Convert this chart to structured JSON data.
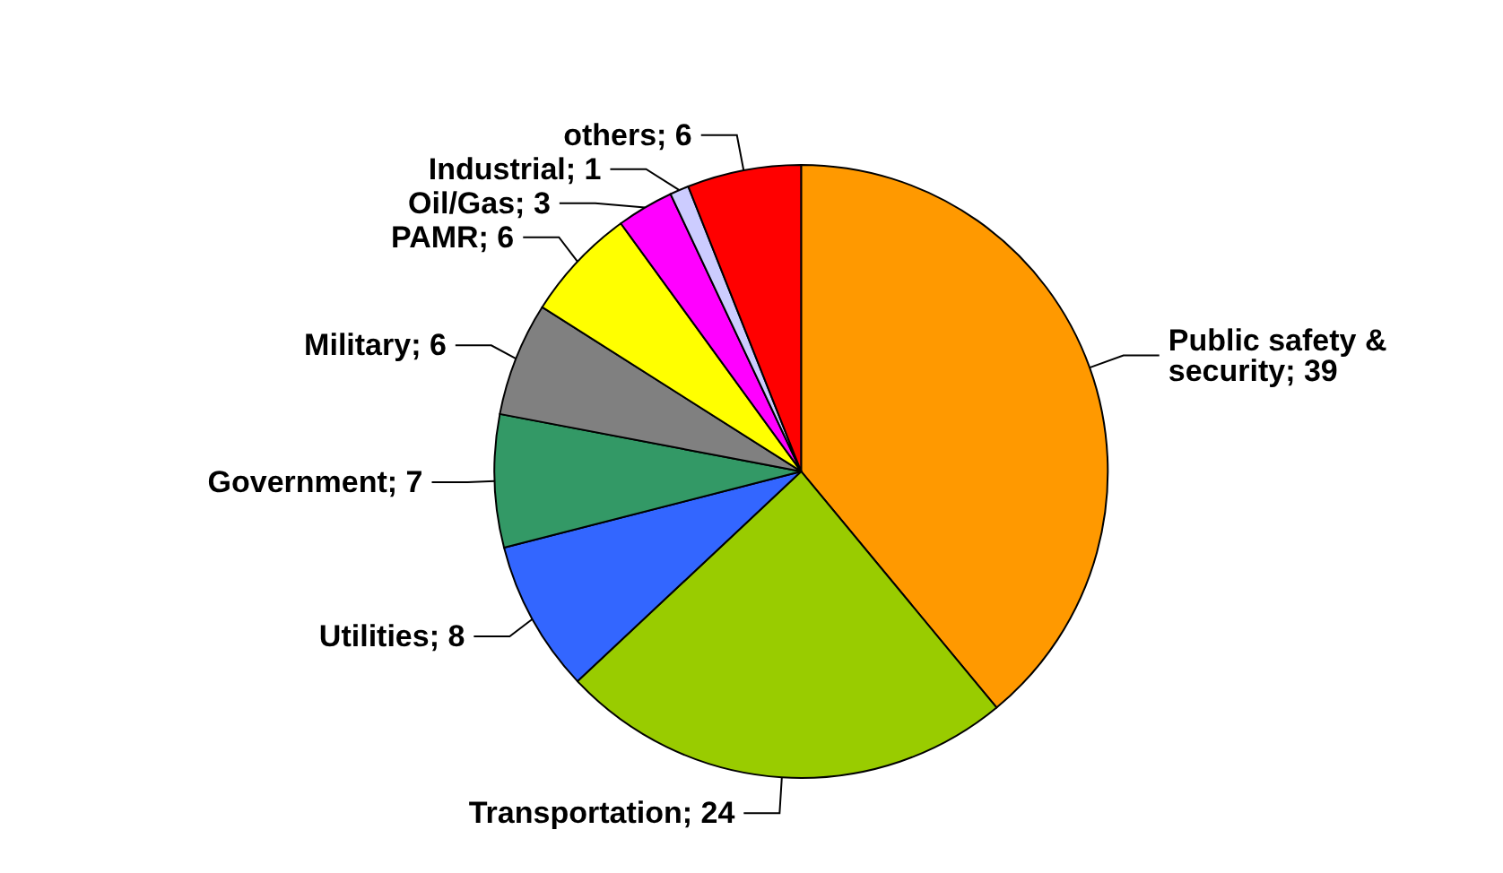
{
  "chart_data": {
    "type": "pie",
    "categories": [
      "Public safety & security",
      "Transportation",
      "Utilities",
      "Government",
      "Military",
      "PAMR",
      "Oil/Gas",
      "Industrial",
      "others"
    ],
    "values": [
      39,
      24,
      8,
      7,
      6,
      6,
      3,
      1,
      6
    ],
    "colors": [
      "#ff9900",
      "#99cc00",
      "#3366ff",
      "#339966",
      "#808080",
      "#ffff00",
      "#ff00ff",
      "#ccccff",
      "#ff0000"
    ],
    "value_labels": [
      "; 39",
      "; 24",
      "; 8",
      "; 7",
      "; 6",
      "; 6",
      "; 3",
      "; 1",
      "; 6"
    ],
    "legend": false
  }
}
